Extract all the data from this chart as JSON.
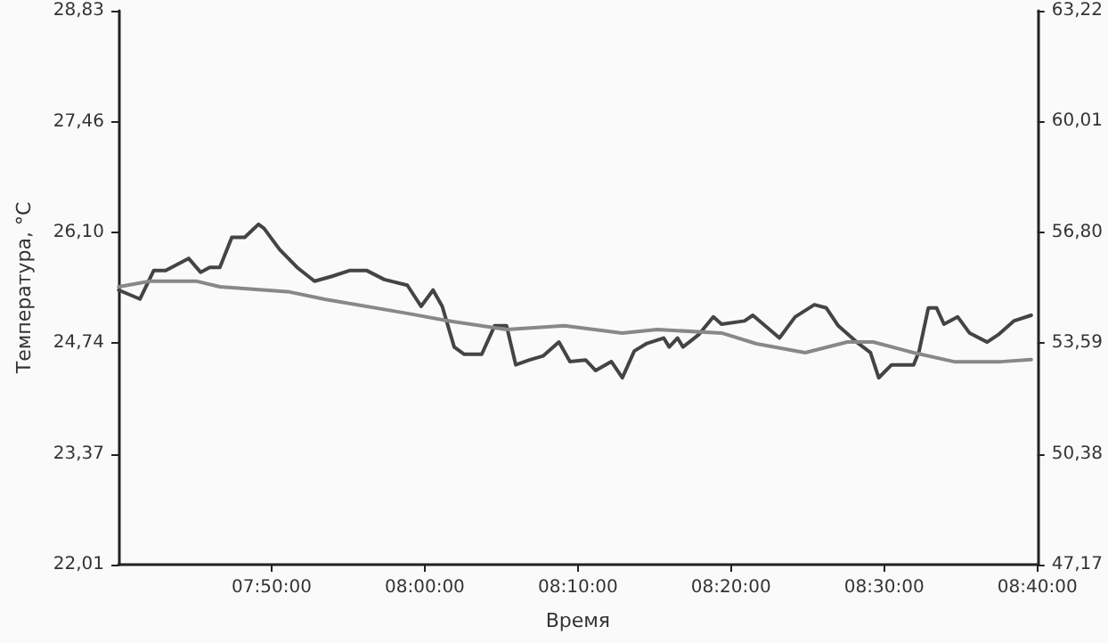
{
  "chart_data": {
    "type": "line",
    "xlabel": "Время",
    "ylabel": "Температура, °C",
    "xlim": [
      7.6667,
      8.6667
    ],
    "xticks": [
      {
        "value": 7.8333,
        "label": "07:50:00"
      },
      {
        "value": 8.0,
        "label": "08:00:00"
      },
      {
        "value": 8.1667,
        "label": "08:10:00"
      },
      {
        "value": 8.3333,
        "label": "08:20:00"
      },
      {
        "value": 8.5,
        "label": "08:30:00"
      },
      {
        "value": 8.6667,
        "label": "08:40:00"
      }
    ],
    "ylim": [
      22.01,
      28.83
    ],
    "yticks": [
      {
        "value": 22.01,
        "label": "22,01"
      },
      {
        "value": 23.37,
        "label": "23,37"
      },
      {
        "value": 24.74,
        "label": "24,74"
      },
      {
        "value": 26.1,
        "label": "26,10"
      },
      {
        "value": 27.46,
        "label": "27,46"
      },
      {
        "value": 28.83,
        "label": "28,83"
      }
    ],
    "y2lim": [
      47.17,
      63.22
    ],
    "y2ticks": [
      {
        "value": 47.17,
        "label": "47,17"
      },
      {
        "value": 50.38,
        "label": "50,38"
      },
      {
        "value": 53.59,
        "label": "53,59"
      },
      {
        "value": 56.8,
        "label": "56,80"
      },
      {
        "value": 60.01,
        "label": "60,01"
      },
      {
        "value": 63.22,
        "label": "63,22"
      }
    ],
    "grid": false,
    "marker": "none",
    "line_style": "solid",
    "series": [
      {
        "color": "#444444",
        "x": [
          7.667,
          7.69,
          7.705,
          7.718,
          7.743,
          7.756,
          7.766,
          7.777,
          7.79,
          7.804,
          7.819,
          7.825,
          7.842,
          7.861,
          7.88,
          7.899,
          7.918,
          7.937,
          7.956,
          7.981,
          7.996,
          8.009,
          8.019,
          8.032,
          8.043,
          8.062,
          8.076,
          8.089,
          8.099,
          8.114,
          8.129,
          8.146,
          8.158,
          8.175,
          8.186,
          8.203,
          8.215,
          8.228,
          8.241,
          8.26,
          8.266,
          8.275,
          8.281,
          8.298,
          8.314,
          8.323,
          8.348,
          8.357,
          8.386,
          8.403,
          8.424,
          8.437,
          8.45,
          8.47,
          8.485,
          8.494,
          8.508,
          8.519,
          8.532,
          8.538,
          8.548,
          8.557,
          8.565,
          8.58,
          8.593,
          8.612,
          8.624,
          8.641,
          8.66
        ],
        "values": [
          25.39,
          25.28,
          25.63,
          25.63,
          25.78,
          25.61,
          25.67,
          25.67,
          26.04,
          26.04,
          26.2,
          26.15,
          25.89,
          25.67,
          25.5,
          25.56,
          25.63,
          25.63,
          25.52,
          25.45,
          25.19,
          25.39,
          25.19,
          24.69,
          24.6,
          24.6,
          24.95,
          24.95,
          24.47,
          24.53,
          24.58,
          24.75,
          24.51,
          24.53,
          24.4,
          24.51,
          24.31,
          24.64,
          24.73,
          24.8,
          24.69,
          24.8,
          24.69,
          24.84,
          25.06,
          24.97,
          25.01,
          25.08,
          24.8,
          25.06,
          25.21,
          25.17,
          24.95,
          24.75,
          24.62,
          24.31,
          24.47,
          24.47,
          24.47,
          24.64,
          25.17,
          25.17,
          24.97,
          25.06,
          24.86,
          24.75,
          24.84,
          25.01,
          25.08
        ]
      },
      {
        "color": "#888888",
        "axis": "y2",
        "x": [
          7.667,
          7.701,
          7.752,
          7.777,
          7.853,
          7.891,
          7.981,
          8.024,
          8.089,
          8.152,
          8.215,
          8.253,
          8.323,
          8.361,
          8.414,
          8.46,
          8.488,
          8.532,
          8.576,
          8.627,
          8.66
        ],
        "values": [
          55.22,
          55.38,
          55.38,
          55.22,
          55.07,
          54.86,
          54.45,
          54.24,
          53.98,
          54.09,
          53.88,
          53.98,
          53.88,
          53.57,
          53.31,
          53.62,
          53.62,
          53.31,
          53.05,
          53.05,
          53.11
        ]
      }
    ]
  }
}
